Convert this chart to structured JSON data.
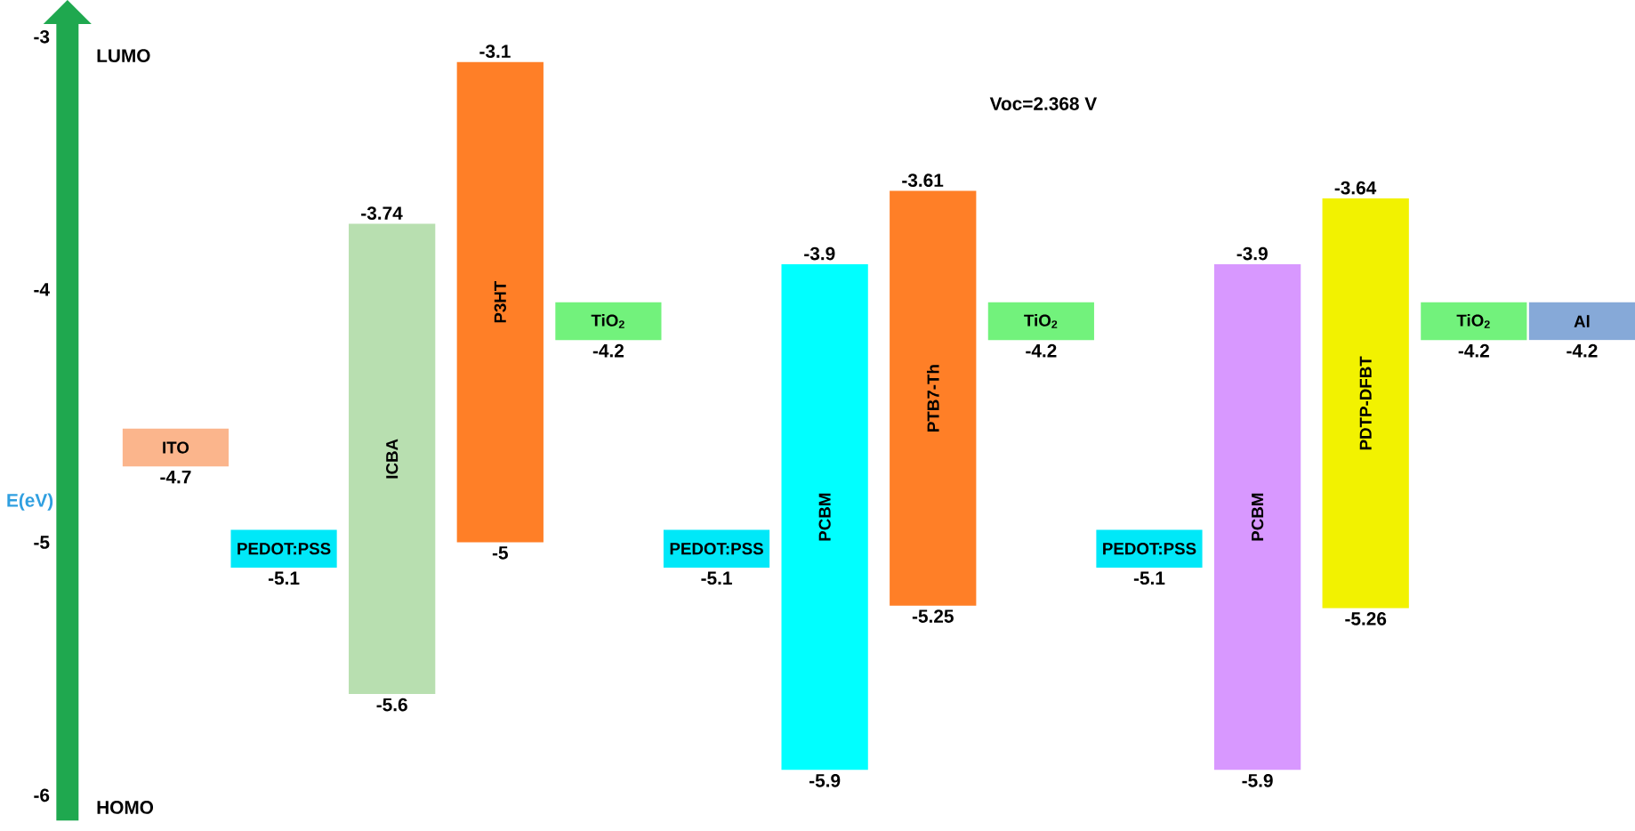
{
  "chart_data": {
    "type": "bar",
    "ylabel": "E(eV)",
    "categories": [
      "ITO",
      "PEDOT:PSS",
      "ICBA",
      "P3HT",
      "TiO$_{2}$",
      "PEDOT:PSS",
      "PCBM",
      "PTB7-Th",
      "TiO$_{2}$",
      "PEDOT:PSS",
      "PCBM",
      "PDTP-DFBT",
      "TiO$_{2}$",
      "Al"
    ],
    "base": [
      -4.7,
      -5.1,
      -3.74,
      -3.1,
      -4.2,
      -5.1,
      -3.9,
      -3.61,
      -4.2,
      -5.1,
      -3.9,
      -3.64,
      -4.2,
      -4.2
    ],
    "values": [
      0.15,
      0.15,
      -1.86,
      -1.9,
      0.15,
      0.15,
      -2.0,
      -1.64,
      0.15,
      0.15,
      -2.0,
      -1.62,
      0.15,
      0.15
    ],
    "colors": [
      "#fbb58c",
      "#00e8f8",
      "#b8dfb0",
      "#ff7f27",
      "#72f27c",
      "#00e8f8",
      "#00ffff",
      "#ff7f27",
      "#72f27c",
      "#00e8f8",
      "#d898ff",
      "#f2f200",
      "#72f27c",
      "#86a9d8"
    ],
    "ylim": [
      -6.1,
      -2.95
    ],
    "yticks": [
      -6,
      -5,
      -4,
      -3
    ],
    "annotations": [
      "LUMO",
      "HOMO",
      "Voc=2.368 V",
      "-4.7",
      "-5.1",
      "-3.74",
      "-5.6",
      "-3.1",
      "-5",
      "-4.2",
      "-5.1",
      "-3.9",
      "-5.9",
      "-3.61",
      "-5.25",
      "-4.2",
      "-5.1",
      "-3.9",
      "-5.9",
      "-3.64",
      "-5.26",
      "-4.2",
      "-4.2"
    ]
  }
}
